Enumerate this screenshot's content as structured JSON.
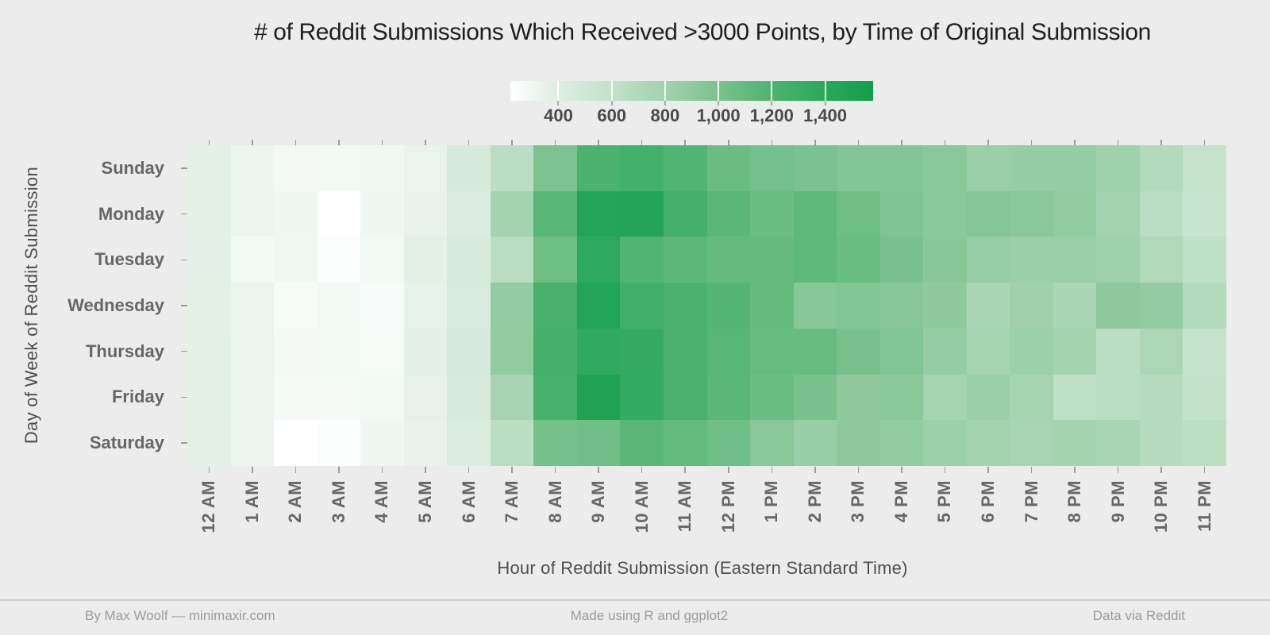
{
  "chart_data": {
    "type": "heatmap",
    "title": "# of Reddit Submissions Which Received >3000 Points, by Time of Original Submission",
    "xlabel": "Hour of Reddit Submission (Eastern Standard Time)",
    "ylabel": "Day of Week of Reddit Submission",
    "x_categories": [
      "12 AM",
      "1 AM",
      "2 AM",
      "3 AM",
      "4 AM",
      "5 AM",
      "6 AM",
      "7 AM",
      "8 AM",
      "9 AM",
      "10 AM",
      "11 AM",
      "12 PM",
      "1 PM",
      "2 PM",
      "3 PM",
      "4 PM",
      "5 PM",
      "6 PM",
      "7 PM",
      "8 PM",
      "9 PM",
      "10 PM",
      "11 PM"
    ],
    "y_categories": [
      "Sunday",
      "Monday",
      "Tuesday",
      "Wednesday",
      "Thursday",
      "Friday",
      "Saturday"
    ],
    "values": [
      [
        375,
        320,
        280,
        290,
        295,
        340,
        460,
        650,
        990,
        1220,
        1260,
        1190,
        1070,
        1030,
        1000,
        955,
        955,
        930,
        845,
        865,
        865,
        815,
        700,
        590
      ],
      [
        370,
        325,
        300,
        230,
        300,
        345,
        415,
        790,
        1160,
        1455,
        1465,
        1255,
        1145,
        1070,
        1130,
        1055,
        970,
        930,
        950,
        925,
        885,
        800,
        650,
        570
      ],
      [
        365,
        285,
        295,
        245,
        285,
        375,
        450,
        665,
        1060,
        1380,
        1190,
        1140,
        1100,
        1100,
        1130,
        1080,
        1010,
        935,
        855,
        835,
        845,
        820,
        715,
        630
      ],
      [
        370,
        335,
        265,
        290,
        260,
        350,
        440,
        875,
        1240,
        1450,
        1270,
        1220,
        1170,
        1100,
        935,
        965,
        935,
        900,
        755,
        810,
        755,
        895,
        875,
        700
      ],
      [
        370,
        325,
        280,
        290,
        265,
        365,
        460,
        885,
        1250,
        1360,
        1340,
        1210,
        1160,
        1090,
        1090,
        1010,
        965,
        860,
        780,
        830,
        790,
        655,
        735,
        580
      ],
      [
        370,
        320,
        270,
        270,
        285,
        355,
        445,
        775,
        1245,
        1475,
        1345,
        1230,
        1150,
        1065,
        1005,
        900,
        930,
        780,
        840,
        780,
        630,
        660,
        690,
        600
      ],
      [
        370,
        330,
        220,
        235,
        300,
        345,
        420,
        655,
        1020,
        1040,
        1155,
        1105,
        1040,
        930,
        855,
        900,
        880,
        830,
        800,
        770,
        790,
        755,
        680,
        640
      ]
    ],
    "legend_position": "top",
    "grid": "off",
    "color_scale": {
      "domain": [
        220,
        1580
      ],
      "legend_tick_values": [
        400,
        600,
        800,
        1000,
        1200,
        1400
      ],
      "legend_tick_labels": [
        "400",
        "600",
        "800",
        "1,000",
        "1,200",
        "1,400"
      ],
      "stops": [
        {
          "value": 220,
          "color": "#ffffff"
        },
        {
          "value": 400,
          "color": "#ddeee2"
        },
        {
          "value": 600,
          "color": "#c2e2ca"
        },
        {
          "value": 800,
          "color": "#a2d2ae"
        },
        {
          "value": 1000,
          "color": "#7ac28e"
        },
        {
          "value": 1200,
          "color": "#4fb370"
        },
        {
          "value": 1400,
          "color": "#28a85a"
        },
        {
          "value": 1580,
          "color": "#149e4c"
        }
      ]
    }
  },
  "footer": {
    "left": "By Max Woolf — minimaxir.com",
    "center": "Made using R and ggplot2",
    "right": "Data via Reddit"
  },
  "colors": {
    "background": "#ebeceb",
    "title_text": "#1f1f1f",
    "axis_label_text": "#676767",
    "axis_title_text": "#4f4f4f",
    "legend_label_text": "#4a4a4a",
    "tick_mark": "#9c9c9c",
    "footer_text": "#9d9d9d",
    "footer_rule": "#d0d0d0"
  }
}
